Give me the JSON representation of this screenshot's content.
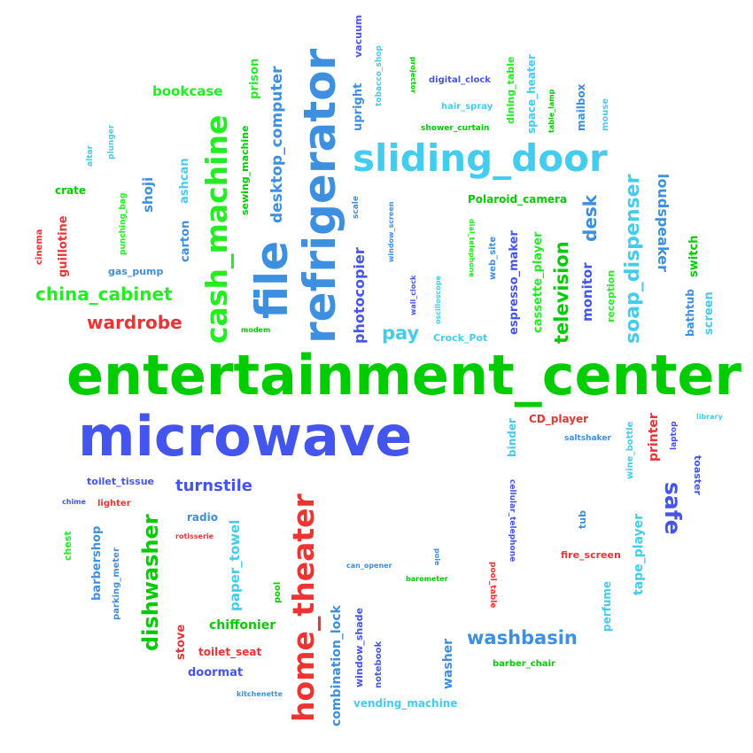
{
  "palette": {
    "green": "#00cc00",
    "bright_green": "#22ee22",
    "blue": "#4455ee",
    "sky": "#44ccee",
    "mid_blue": "#3d8fe0",
    "red": "#ee3333"
  },
  "words": [
    "entertainment_center",
    "microwave",
    "refrigerator",
    "file",
    "sliding_door",
    "cash_machine",
    "home_theater",
    "china_cabinet",
    "wardrobe",
    "bookcase",
    "washbasin",
    "turnstile",
    "dishwasher",
    "soap_dispenser",
    "television",
    "desktop_computer",
    "safe",
    "pay",
    "espresso_maker",
    "photocopier",
    "loudspeaker",
    "cassette_player",
    "shoji",
    "desk",
    "monitor",
    "paper_towel",
    "chiffonier",
    "vending_machine",
    "combination_lock",
    "Polaroid_camera",
    "CD_player",
    "toilet_seat",
    "doormat",
    "tape_player",
    "toilet_tissue",
    "radio",
    "barbershop",
    "stove",
    "printer",
    "binder",
    "crate",
    "gas_pump",
    "guillotine",
    "carton",
    "ashcan",
    "prison",
    "sewing_machine",
    "tobacco_shop",
    "vacuum",
    "upright",
    "projector",
    "digital_clock",
    "hair_spray",
    "shower_curtain",
    "dining_table",
    "space_heater",
    "table_lamp",
    "mailbox",
    "mouse",
    "altar",
    "plunger",
    "punching_bag",
    "cinema",
    "scale",
    "window_screen",
    "dial_telephone",
    "web_site",
    "wall_clock",
    "oscilloscope",
    "reception",
    "switch",
    "bathtub",
    "screen",
    "Crock_Pot",
    "modem",
    "library",
    "laptop",
    "wine_bottle",
    "saltshaker",
    "toaster",
    "cellular_telephone",
    "tub",
    "fire_screen",
    "perfume",
    "pool_table",
    "pole",
    "can_opener",
    "barometer",
    "chime",
    "lighter",
    "rotisserie",
    "chest",
    "parking_meter",
    "pool",
    "window_shade",
    "notebook",
    "washer",
    "barber_chair",
    "kitchenette"
  ]
}
